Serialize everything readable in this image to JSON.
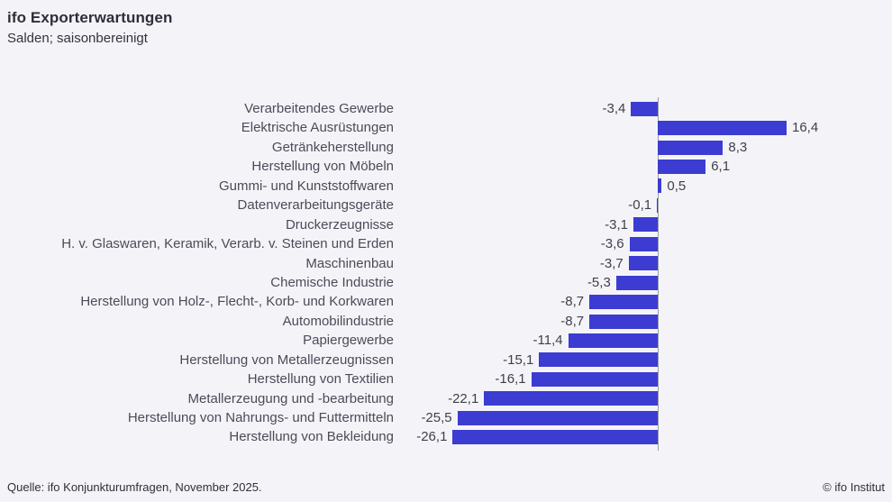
{
  "header": {
    "title": "ifo Exporterwartungen",
    "subtitle": "Salden; saisonbereinigt"
  },
  "footer": {
    "source": "Quelle: ifo Konjunkturumfragen, November 2025.",
    "copyright": "© ifo Institut"
  },
  "colors": {
    "bar": "#3c3cd2",
    "background": "#f4f4f8",
    "axis": "#9b9ba6"
  },
  "chart_data": {
    "type": "bar",
    "orientation": "horizontal",
    "title": "ifo Exporterwartungen",
    "subtitle": "Salden; saisonbereinigt",
    "categories": [
      "Verarbeitendes Gewerbe",
      "Elektrische Ausrüstungen",
      "Getränkeherstellung",
      "Herstellung von Möbeln",
      "Gummi- und Kunststoffwaren",
      "Datenverarbeitungsgeräte",
      "Druckerzeugnisse",
      "H. v. Glaswaren, Keramik, Verarb. v. Steinen und Erden",
      "Maschinenbau",
      "Chemische Industrie",
      "Herstellung von Holz-, Flecht-, Korb- und Korkwaren",
      "Automobilindustrie",
      "Papiergewerbe",
      "Herstellung von Metallerzeugnissen",
      "Herstellung von Textilien",
      "Metallerzeugung und -bearbeitung",
      "Herstellung von Nahrungs- und Futtermitteln",
      "Herstellung von Bekleidung"
    ],
    "values": [
      -3.4,
      16.4,
      8.3,
      6.1,
      0.5,
      -0.1,
      -3.1,
      -3.6,
      -3.7,
      -5.3,
      -8.7,
      -8.7,
      -11.4,
      -15.1,
      -16.1,
      -22.1,
      -25.5,
      -26.1
    ],
    "value_labels": [
      "-3,4",
      "16,4",
      "8,3",
      "6,1",
      "0,5",
      "-0,1",
      "-3,1",
      "-3,6",
      "-3,7",
      "-5,3",
      "-8,7",
      "-8,7",
      "-11,4",
      "-15,1",
      "-16,1",
      "-22,1",
      "-25,5",
      "-26,1"
    ],
    "xlim": [
      -30,
      20
    ],
    "grid": false,
    "zero_line": true,
    "value_axis_visible": false,
    "legend": "none",
    "data_labels": "at bar ends, comma decimal"
  }
}
